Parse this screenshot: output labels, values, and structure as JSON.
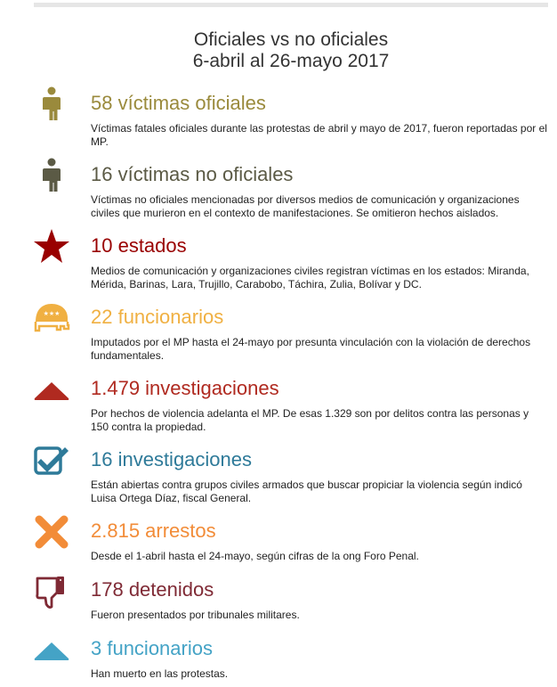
{
  "title": {
    "line1": "Oficiales vs no oficiales",
    "line2": "6-abril al 26-mayo 2017"
  },
  "items": [
    {
      "heading": "58 víctimas oficiales",
      "text": "Víctimas fatales oficiales durante las protestas de abril y mayo de 2017, fueron reportadas por el MP.",
      "icon": "person-icon",
      "color": "#9a8a3c"
    },
    {
      "heading": "16 víctimas no oficiales",
      "text": "Víctimas no oficiales mencionadas por diversos medios de comunicación y organizaciones civiles que murieron en el contexto de manifestaciones. Se omitieron hechos aislados.",
      "icon": "person-icon",
      "color": "#5b5a45"
    },
    {
      "heading": "10 estados",
      "text": "Medios de comunicación y organizaciones civiles registran víctimas en los estados: Miranda, Mérida, Barinas, Lara, Trujillo, Carabobo, Táchira, Zulia, Bolívar y DC.",
      "icon": "star-icon",
      "color": "#990000"
    },
    {
      "heading": "22 funcionarios",
      "text": "Imputados por el MP hasta el 24-mayo por presunta vinculación con la violación de derechos fundamentales.",
      "icon": "elephant-icon",
      "color": "#f0b042"
    },
    {
      "heading": "1.479 investigaciones",
      "text": "Por hechos de violencia adelanta el MP. De esas 1.329 son por delitos contra las personas y 150 contra la propiedad.",
      "icon": "triangle-up-icon",
      "color": "#b02a20"
    },
    {
      "heading": "16 investigaciones",
      "text": "Están abiertas contra grupos civiles armados que buscar propiciar la violencia según indicó Luisa Ortega Díaz, fiscal General.",
      "icon": "checkbox-icon",
      "color": "#2e7a99"
    },
    {
      "heading": "2.815 arrestos",
      "text": "Desde el 1-abril hasta el 24-mayo, según cifras de la ong Foro Penal.",
      "icon": "x-icon",
      "color": "#f28c38"
    },
    {
      "heading": "178 detenidos",
      "text": "Fueron presentados por tribunales militares.",
      "icon": "thumbs-down-icon",
      "color": "#7f2a35"
    },
    {
      "heading": "3 funcionarios",
      "text": "Han muerto en las protestas.",
      "icon": "triangle-up-icon",
      "color": "#44a3c6"
    }
  ]
}
